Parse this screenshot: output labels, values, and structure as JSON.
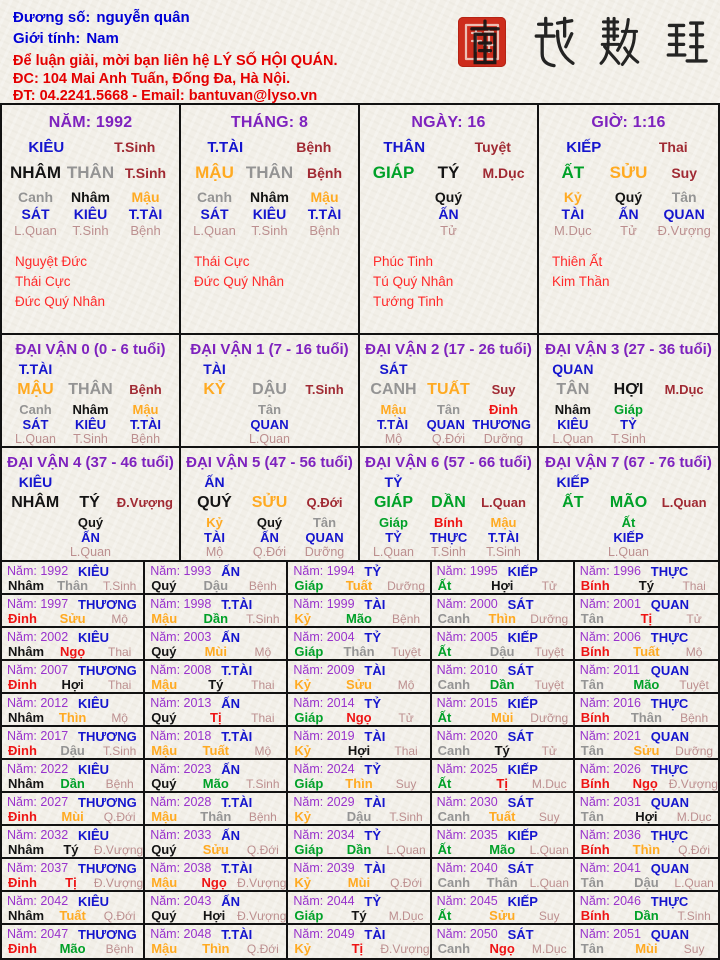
{
  "header": {
    "name_label": "Đương số:",
    "name_value": "nguyễn quân",
    "gender_label": "Giới tính:",
    "gender_value": "Nam",
    "contact1": "Để luận giải, mời bạn liên hệ LÝ SỐ HỘI QUÁN.",
    "contact2": "ĐC: 104 Mai Anh Tuấn, Đống Đa, Hà Nội.",
    "contact3": "ĐT: 04.2241.5668 - Email: bantuvan@lyso.vn",
    "logo_text": "南越數理"
  },
  "year_label": "Năm:",
  "colors": {
    "header_blue": "#0000d6",
    "header_red": "#e40000",
    "blue": "#1515ce",
    "purple": "#7e22be",
    "year_purple": "#9933cc",
    "maroon": "#a02a33",
    "rosy": "#bc8f8f",
    "god_red": "#ff2a2a",
    "black": "#141414",
    "gray": "#949494",
    "orange": "#ffaa22",
    "green": "#00a128",
    "red": "#ee1414"
  },
  "stem_colors": {
    "Giáp": "green",
    "Ất": "green",
    "Bính": "red",
    "Đinh": "red",
    "Mậu": "orange",
    "Kỷ": "orange",
    "Canh": "gray",
    "Tân": "gray",
    "Nhâm": "black",
    "Quý": "black"
  },
  "branch_colors": {
    "Tý": "black",
    "Hợi": "black",
    "Sửu": "orange",
    "Thìn": "orange",
    "Mùi": "orange",
    "Tuất": "orange",
    "Dần": "green",
    "Mão": "green",
    "Tị": "red",
    "Ngọ": "red",
    "Thân": "gray",
    "Dậu": "gray"
  },
  "pillars": [
    {
      "title": "NĂM: 1992",
      "star": "KIÊU",
      "star_stage": "T.Sinh",
      "main": [
        [
          "NHÂM",
          "black"
        ],
        [
          "THÂN",
          "gray"
        ],
        "T.Sinh"
      ],
      "stems": [
        [
          "Canh",
          "gray"
        ],
        [
          "Nhâm",
          "black"
        ],
        [
          "Mậu",
          "orange"
        ]
      ],
      "stars": [
        "SÁT",
        "KIÊU",
        "T.TÀI"
      ],
      "stages": [
        "L.Quan",
        "T.Sinh",
        "Bệnh"
      ],
      "gods": [
        "Nguyệt Đức",
        "Thái Cực",
        "Đức Quý Nhân"
      ]
    },
    {
      "title": "THÁNG: 8",
      "star": "T.TÀI",
      "star_stage": "Bệnh",
      "main": [
        [
          "MẬU",
          "orange"
        ],
        [
          "THÂN",
          "gray"
        ],
        "Bệnh"
      ],
      "stems": [
        [
          "Canh",
          "gray"
        ],
        [
          "Nhâm",
          "black"
        ],
        [
          "Mậu",
          "orange"
        ]
      ],
      "stars": [
        "SÁT",
        "KIÊU",
        "T.TÀI"
      ],
      "stages": [
        "L.Quan",
        "T.Sinh",
        "Bệnh"
      ],
      "gods": [
        "Thái Cực",
        "Đức Quý Nhân"
      ]
    },
    {
      "title": "NGÀY: 16",
      "star": "THÂN",
      "star_stage": "Tuyệt",
      "main": [
        [
          "GIÁP",
          "green"
        ],
        [
          "TÝ",
          "black"
        ],
        "M.Dục"
      ],
      "stems": [
        null,
        [
          "Quý",
          "black"
        ],
        null
      ],
      "stars": [
        null,
        "ẤN",
        null
      ],
      "stages": [
        null,
        "Tử",
        null
      ],
      "gods": [
        "Phúc Tinh",
        "Tú Quý Nhân",
        "Tướng Tinh"
      ]
    },
    {
      "title": "GIỜ: 1:16",
      "star": "KIẾP",
      "star_stage": "Thai",
      "main": [
        [
          "ẤT",
          "green"
        ],
        [
          "SỬU",
          "orange"
        ],
        "Suy"
      ],
      "stems": [
        [
          "Kỷ",
          "orange"
        ],
        [
          "Quý",
          "black"
        ],
        [
          "Tân",
          "gray"
        ]
      ],
      "stars": [
        "TÀI",
        "ẤN",
        "QUAN"
      ],
      "stages": [
        "M.Dục",
        "Tử",
        "Đ.Vượng"
      ],
      "gods": [
        "Thiên Ất",
        "Kim Thần"
      ]
    }
  ],
  "dai_van": [
    {
      "title": "ĐẠI VẬN 0 (0 - 6 tuổi)",
      "star": "T.TÀI",
      "main": [
        [
          "MẬU",
          "orange"
        ],
        [
          "THÂN",
          "gray"
        ],
        "Bệnh"
      ],
      "stems": [
        [
          "Canh",
          "gray"
        ],
        [
          "Nhâm",
          "black"
        ],
        [
          "Mậu",
          "orange"
        ]
      ],
      "stars": [
        "SÁT",
        "KIÊU",
        "T.TÀI"
      ],
      "stages": [
        "L.Quan",
        "T.Sinh",
        "Bệnh"
      ]
    },
    {
      "title": "ĐẠI VẬN 1 (7 - 16 tuổi)",
      "star": "TÀI",
      "main": [
        [
          "KỶ",
          "orange"
        ],
        [
          "DẬU",
          "gray"
        ],
        "T.Sinh"
      ],
      "stems": [
        null,
        [
          "Tân",
          "gray"
        ],
        null
      ],
      "stars": [
        null,
        "QUAN",
        null
      ],
      "stages": [
        null,
        "L.Quan",
        null
      ]
    },
    {
      "title": "ĐẠI VẬN 2 (17 - 26 tuổi)",
      "star": "SÁT",
      "main": [
        [
          "CANH",
          "gray"
        ],
        [
          "TUẤT",
          "orange"
        ],
        "Suy"
      ],
      "stems": [
        [
          "Mậu",
          "orange"
        ],
        [
          "Tân",
          "gray"
        ],
        [
          "Đinh",
          "red"
        ]
      ],
      "stars": [
        "T.TÀI",
        "QUAN",
        "THƯƠNG"
      ],
      "stages": [
        "Mộ",
        "Q.Đới",
        "Dưỡng"
      ]
    },
    {
      "title": "ĐẠI VẬN 3 (27 - 36 tuổi)",
      "star": "QUAN",
      "main": [
        [
          "TÂN",
          "gray"
        ],
        [
          "HỢI",
          "black"
        ],
        "M.Dục"
      ],
      "stems": [
        [
          "Nhâm",
          "black"
        ],
        [
          "Giáp",
          "green"
        ],
        null
      ],
      "stars": [
        "KIÊU",
        "TỶ",
        null
      ],
      "stages": [
        "L.Quan",
        "T.Sinh",
        null
      ]
    },
    {
      "title": "ĐẠI VẬN 4 (37 - 46 tuổi)",
      "star": "KIÊU",
      "main": [
        [
          "NHÂM",
          "black"
        ],
        [
          "TÝ",
          "black"
        ],
        "Đ.Vượng"
      ],
      "stems": [
        null,
        [
          "Quý",
          "black"
        ],
        null
      ],
      "stars": [
        null,
        "ẤN",
        null
      ],
      "stages": [
        null,
        "L.Quan",
        null
      ]
    },
    {
      "title": "ĐẠI VẬN 5 (47 - 56 tuổi)",
      "star": "ẤN",
      "main": [
        [
          "QUÝ",
          "black"
        ],
        [
          "SỬU",
          "orange"
        ],
        "Q.Đới"
      ],
      "stems": [
        [
          "Kỷ",
          "orange"
        ],
        [
          "Quý",
          "black"
        ],
        [
          "Tân",
          "gray"
        ]
      ],
      "stars": [
        "TÀI",
        "ẤN",
        "QUAN"
      ],
      "stages": [
        "Mộ",
        "Q.Đới",
        "Dưỡng"
      ]
    },
    {
      "title": "ĐẠI VẬN 6 (57 - 66 tuổi)",
      "star": "TỶ",
      "main": [
        [
          "GIÁP",
          "green"
        ],
        [
          "DẦN",
          "green"
        ],
        "L.Quan"
      ],
      "stems": [
        [
          "Giáp",
          "green"
        ],
        [
          "Bính",
          "red"
        ],
        [
          "Mậu",
          "orange"
        ]
      ],
      "stars": [
        "TỶ",
        "THỰC",
        "T.TÀI"
      ],
      "stages": [
        "L.Quan",
        "T.Sinh",
        "T.Sinh"
      ]
    },
    {
      "title": "ĐẠI VẬN 7 (67 - 76 tuổi)",
      "star": "KIẾP",
      "main": [
        [
          "ẤT",
          "green"
        ],
        [
          "MÃO",
          "green"
        ],
        "L.Quan"
      ],
      "stems": [
        null,
        [
          "Ất",
          "green"
        ],
        null
      ],
      "stars": [
        null,
        "KIẾP",
        null
      ],
      "stages": [
        null,
        "L.Quan",
        null
      ]
    }
  ],
  "years": [
    [
      1992,
      "KIÊU",
      "Nhâm",
      "Thân",
      "T.Sinh"
    ],
    [
      1993,
      "ẤN",
      "Quý",
      "Dậu",
      "Bệnh"
    ],
    [
      1994,
      "TỶ",
      "Giáp",
      "Tuất",
      "Dưỡng"
    ],
    [
      1995,
      "KIẾP",
      "Ất",
      "Hợi",
      "Tử"
    ],
    [
      1996,
      "THỰC",
      "Bính",
      "Tý",
      "Thai"
    ],
    [
      1997,
      "THƯƠNG",
      "Đinh",
      "Sửu",
      "Mộ"
    ],
    [
      1998,
      "T.TÀI",
      "Mậu",
      "Dần",
      "T.Sinh"
    ],
    [
      1999,
      "TÀI",
      "Kỷ",
      "Mão",
      "Bệnh"
    ],
    [
      2000,
      "SÁT",
      "Canh",
      "Thìn",
      "Dưỡng"
    ],
    [
      2001,
      "QUAN",
      "Tân",
      "Tị",
      "Tử"
    ],
    [
      2002,
      "KIÊU",
      "Nhâm",
      "Ngọ",
      "Thai"
    ],
    [
      2003,
      "ẤN",
      "Quý",
      "Mùi",
      "Mộ"
    ],
    [
      2004,
      "TỶ",
      "Giáp",
      "Thân",
      "Tuyệt"
    ],
    [
      2005,
      "KIẾP",
      "Ất",
      "Dậu",
      "Tuyệt"
    ],
    [
      2006,
      "THỰC",
      "Bính",
      "Tuất",
      "Mộ"
    ],
    [
      2007,
      "THƯƠNG",
      "Đinh",
      "Hợi",
      "Thai"
    ],
    [
      2008,
      "T.TÀI",
      "Mậu",
      "Tý",
      "Thai"
    ],
    [
      2009,
      "TÀI",
      "Kỷ",
      "Sửu",
      "Mộ"
    ],
    [
      2010,
      "SÁT",
      "Canh",
      "Dần",
      "Tuyệt"
    ],
    [
      2011,
      "QUAN",
      "Tân",
      "Mão",
      "Tuyệt"
    ],
    [
      2012,
      "KIÊU",
      "Nhâm",
      "Thìn",
      "Mộ"
    ],
    [
      2013,
      "ẤN",
      "Quý",
      "Tị",
      "Thai"
    ],
    [
      2014,
      "TỶ",
      "Giáp",
      "Ngọ",
      "Tử"
    ],
    [
      2015,
      "KIẾP",
      "Ất",
      "Mùi",
      "Dưỡng"
    ],
    [
      2016,
      "THỰC",
      "Bính",
      "Thân",
      "Bệnh"
    ],
    [
      2017,
      "THƯƠNG",
      "Đinh",
      "Dậu",
      "T.Sinh"
    ],
    [
      2018,
      "T.TÀI",
      "Mậu",
      "Tuất",
      "Mộ"
    ],
    [
      2019,
      "TÀI",
      "Kỷ",
      "Hợi",
      "Thai"
    ],
    [
      2020,
      "SÁT",
      "Canh",
      "Tý",
      "Tử"
    ],
    [
      2021,
      "QUAN",
      "Tân",
      "Sửu",
      "Dưỡng"
    ],
    [
      2022,
      "KIÊU",
      "Nhâm",
      "Dần",
      "Bệnh"
    ],
    [
      2023,
      "ẤN",
      "Quý",
      "Mão",
      "T.Sinh"
    ],
    [
      2024,
      "TỶ",
      "Giáp",
      "Thìn",
      "Suy"
    ],
    [
      2025,
      "KIẾP",
      "Ất",
      "Tị",
      "M.Dục"
    ],
    [
      2026,
      "THỰC",
      "Bính",
      "Ngọ",
      "Đ.Vượng"
    ],
    [
      2027,
      "THƯƠNG",
      "Đinh",
      "Mùi",
      "Q.Đới"
    ],
    [
      2028,
      "T.TÀI",
      "Mậu",
      "Thân",
      "Bệnh"
    ],
    [
      2029,
      "TÀI",
      "Kỷ",
      "Dậu",
      "T.Sinh"
    ],
    [
      2030,
      "SÁT",
      "Canh",
      "Tuất",
      "Suy"
    ],
    [
      2031,
      "QUAN",
      "Tân",
      "Hợi",
      "M.Dục"
    ],
    [
      2032,
      "KIÊU",
      "Nhâm",
      "Tý",
      "Đ.Vượng"
    ],
    [
      2033,
      "ẤN",
      "Quý",
      "Sửu",
      "Q.Đới"
    ],
    [
      2034,
      "TỶ",
      "Giáp",
      "Dần",
      "L.Quan"
    ],
    [
      2035,
      "KIẾP",
      "Ất",
      "Mão",
      "L.Quan"
    ],
    [
      2036,
      "THỰC",
      "Bính",
      "Thìn",
      "Q.Đới"
    ],
    [
      2037,
      "THƯƠNG",
      "Đinh",
      "Tị",
      "Đ.Vượng"
    ],
    [
      2038,
      "T.TÀI",
      "Mậu",
      "Ngọ",
      "Đ.Vượng"
    ],
    [
      2039,
      "TÀI",
      "Kỷ",
      "Mùi",
      "Q.Đới"
    ],
    [
      2040,
      "SÁT",
      "Canh",
      "Thân",
      "L.Quan"
    ],
    [
      2041,
      "QUAN",
      "Tân",
      "Dậu",
      "L.Quan"
    ],
    [
      2042,
      "KIÊU",
      "Nhâm",
      "Tuất",
      "Q.Đới"
    ],
    [
      2043,
      "ẤN",
      "Quý",
      "Hợi",
      "Đ.Vượng"
    ],
    [
      2044,
      "TỶ",
      "Giáp",
      "Tý",
      "M.Dục"
    ],
    [
      2045,
      "KIẾP",
      "Ất",
      "Sửu",
      "Suy"
    ],
    [
      2046,
      "THỰC",
      "Bính",
      "Dần",
      "T.Sinh"
    ],
    [
      2047,
      "THƯƠNG",
      "Đinh",
      "Mão",
      "Bệnh"
    ],
    [
      2048,
      "T.TÀI",
      "Mậu",
      "Thìn",
      "Q.Đới"
    ],
    [
      2049,
      "TÀI",
      "Kỷ",
      "Tị",
      "Đ.Vượng"
    ],
    [
      2050,
      "SÁT",
      "Canh",
      "Ngọ",
      "M.Dục"
    ],
    [
      2051,
      "QUAN",
      "Tân",
      "Mùi",
      "Suy"
    ]
  ]
}
